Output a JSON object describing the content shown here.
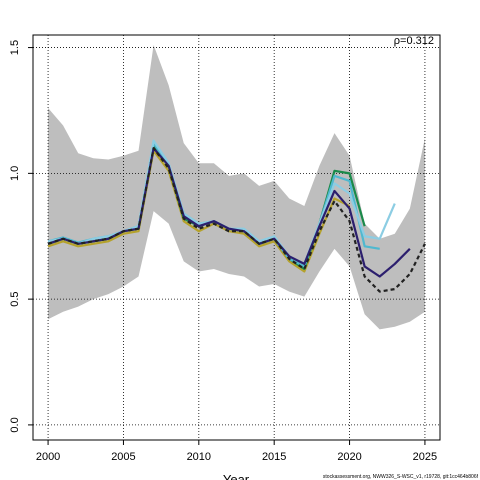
{
  "chart_data": {
    "type": "line",
    "annotation": "ρ=0.312",
    "xlabel": "Year",
    "footer": "stockassessment.org, NWW326_S-WSC_v1, r19728, git:1cc464b806f",
    "x": [
      2000,
      2001,
      2002,
      2003,
      2004,
      2005,
      2006,
      2007,
      2008,
      2009,
      2010,
      2011,
      2012,
      2013,
      2014,
      2015,
      2016,
      2017,
      2018,
      2019,
      2020,
      2021,
      2022,
      2023,
      2024,
      2025
    ],
    "band": {
      "color": "#bebebe",
      "upper": [
        1.26,
        1.19,
        1.08,
        1.06,
        1.055,
        1.07,
        1.09,
        1.51,
        1.35,
        1.12,
        1.04,
        1.04,
        0.99,
        1.0,
        0.95,
        0.97,
        0.9,
        0.87,
        1.03,
        1.16,
        1.07,
        0.8,
        0.74,
        0.76,
        0.86,
        1.14
      ],
      "lower": [
        0.42,
        0.45,
        0.47,
        0.5,
        0.52,
        0.55,
        0.59,
        0.85,
        0.8,
        0.65,
        0.61,
        0.62,
        0.6,
        0.59,
        0.55,
        0.56,
        0.53,
        0.51,
        0.61,
        0.7,
        0.63,
        0.44,
        0.38,
        0.39,
        0.41,
        0.45
      ]
    },
    "series": [
      {
        "color": "#b5a22c",
        "values": [
          0.71,
          0.73,
          0.71,
          0.72,
          0.73,
          0.76,
          0.77,
          1.09,
          1.01,
          0.81,
          0.77,
          0.8,
          0.77,
          0.76,
          0.71,
          0.73,
          0.65,
          0.61,
          0.76,
          0.9,
          0.87,
          null,
          null,
          null,
          null,
          null
        ]
      },
      {
        "color": "#1a8a4a",
        "values": [
          0.72,
          0.74,
          0.72,
          0.73,
          0.74,
          0.77,
          0.78,
          1.11,
          1.03,
          0.82,
          0.79,
          0.81,
          0.78,
          0.77,
          0.72,
          0.74,
          0.66,
          0.62,
          0.8,
          1.01,
          1.0,
          0.79,
          null,
          null,
          null,
          null
        ]
      },
      {
        "color": "#4fb8cf",
        "values": [
          0.73,
          0.745,
          0.725,
          0.74,
          0.75,
          0.77,
          0.79,
          1.12,
          1.03,
          0.84,
          0.8,
          0.81,
          0.78,
          0.77,
          0.72,
          0.74,
          0.66,
          0.63,
          0.8,
          0.99,
          0.97,
          0.71,
          0.7,
          null,
          null,
          null
        ]
      },
      {
        "color": "#8ccde3",
        "values": [
          0.73,
          0.74,
          0.72,
          0.74,
          0.75,
          0.77,
          0.79,
          1.13,
          1.04,
          0.84,
          0.8,
          0.81,
          0.78,
          0.78,
          0.73,
          0.75,
          0.67,
          0.64,
          0.8,
          0.96,
          0.92,
          0.75,
          0.74,
          0.88,
          null,
          null
        ]
      },
      {
        "color": "#2c1f6e",
        "values": [
          0.72,
          0.74,
          0.72,
          0.73,
          0.74,
          0.77,
          0.78,
          1.1,
          1.03,
          0.83,
          0.79,
          0.81,
          0.78,
          0.77,
          0.72,
          0.74,
          0.67,
          0.64,
          0.79,
          0.93,
          0.86,
          0.63,
          0.59,
          0.64,
          0.7,
          null
        ]
      },
      {
        "color": "#222222",
        "dashed": true,
        "values": [
          0.72,
          0.74,
          0.72,
          0.73,
          0.74,
          0.77,
          0.78,
          1.1,
          1.02,
          0.82,
          0.78,
          0.8,
          0.77,
          0.77,
          0.72,
          0.74,
          0.66,
          0.62,
          0.77,
          0.89,
          0.81,
          0.59,
          0.53,
          0.54,
          0.6,
          0.72
        ]
      }
    ],
    "xlim": [
      1999,
      2026
    ],
    "xticks": [
      2000,
      2005,
      2010,
      2015,
      2020,
      2025
    ],
    "ylim": [
      -0.06,
      1.55
    ],
    "yticks": [
      {
        "value": 0,
        "label": "0.0"
      },
      0.5,
      {
        "value": 1,
        "label": "1.0"
      },
      1.5
    ],
    "grid": true
  }
}
